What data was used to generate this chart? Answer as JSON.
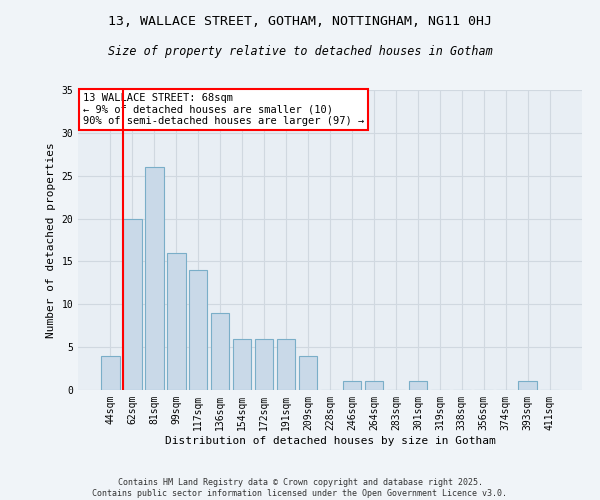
{
  "title1": "13, WALLACE STREET, GOTHAM, NOTTINGHAM, NG11 0HJ",
  "title2": "Size of property relative to detached houses in Gotham",
  "xlabel": "Distribution of detached houses by size in Gotham",
  "ylabel": "Number of detached properties",
  "categories": [
    "44sqm",
    "62sqm",
    "81sqm",
    "99sqm",
    "117sqm",
    "136sqm",
    "154sqm",
    "172sqm",
    "191sqm",
    "209sqm",
    "228sqm",
    "246sqm",
    "264sqm",
    "283sqm",
    "301sqm",
    "319sqm",
    "338sqm",
    "356sqm",
    "374sqm",
    "393sqm",
    "411sqm"
  ],
  "values": [
    4,
    20,
    26,
    16,
    14,
    9,
    6,
    6,
    6,
    4,
    0,
    1,
    1,
    0,
    1,
    0,
    0,
    0,
    0,
    1,
    0
  ],
  "bar_color": "#c9d9e8",
  "bar_edge_color": "#7aaec8",
  "grid_color": "#d0d8e0",
  "bg_color": "#e8eef4",
  "vline_color": "red",
  "annotation_text": "13 WALLACE STREET: 68sqm\n← 9% of detached houses are smaller (10)\n90% of semi-detached houses are larger (97) →",
  "annotation_box_color": "white",
  "annotation_box_edge": "red",
  "ylim": [
    0,
    35
  ],
  "yticks": [
    0,
    5,
    10,
    15,
    20,
    25,
    30,
    35
  ],
  "footer": "Contains HM Land Registry data © Crown copyright and database right 2025.\nContains public sector information licensed under the Open Government Licence v3.0.",
  "fig_bg": "#f0f4f8",
  "title_fontsize": 9.5,
  "subtitle_fontsize": 8.5,
  "xlabel_fontsize": 8,
  "ylabel_fontsize": 8,
  "tick_fontsize": 7,
  "annotation_fontsize": 7.5,
  "footer_fontsize": 6
}
